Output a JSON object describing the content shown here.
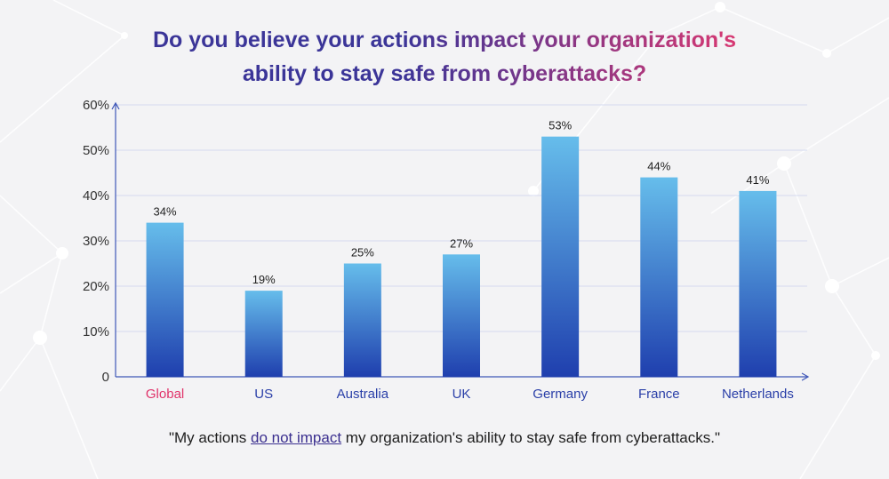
{
  "title": {
    "line1": "Do you believe your actions impact your organization's",
    "line2": "ability to stay safe from cyberattacks?"
  },
  "caption": {
    "open_quote": "\"My actions ",
    "emphasis": "do not impact",
    "rest": " my organization's ability to stay safe from cyberattacks.\""
  },
  "colors": {
    "title_start": "#3b3598",
    "title_end": "#e03870",
    "bar_top": "#66bdeb",
    "bar_bottom": "#1f3fae",
    "axis": "#3f57b8",
    "grid": "#d4daf0",
    "highlight_label": "#e0336a",
    "category_label": "#2a3fa8"
  },
  "chart_data": {
    "type": "bar",
    "categories": [
      "Global",
      "US",
      "Australia",
      "UK",
      "Germany",
      "France",
      "Netherlands"
    ],
    "values": [
      34,
      19,
      25,
      27,
      53,
      44,
      41
    ],
    "value_labels": [
      "34%",
      "19%",
      "25%",
      "27%",
      "53%",
      "44%",
      "41%"
    ],
    "highlight_category": "Global",
    "ylim": [
      0,
      60
    ],
    "yticks": [
      0,
      10,
      20,
      30,
      40,
      50,
      60
    ],
    "ytick_labels": [
      "0",
      "10%",
      "20%",
      "30%",
      "40%",
      "50%",
      "60%"
    ],
    "grid": true,
    "legend": "none"
  }
}
